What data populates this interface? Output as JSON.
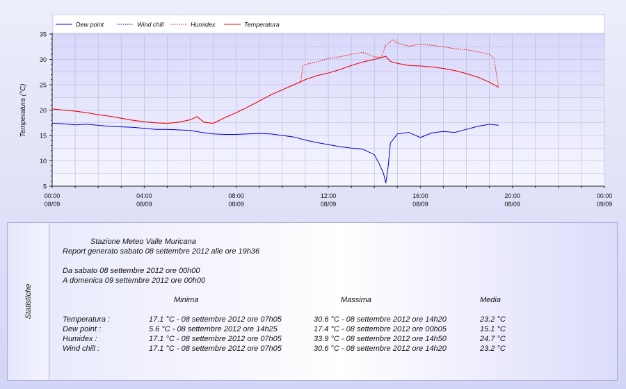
{
  "chart_data": {
    "type": "line",
    "ylabel": "Temperatura (°C)",
    "ylim": [
      5,
      35
    ],
    "yticks": [
      5,
      10,
      15,
      20,
      25,
      30,
      35
    ],
    "x_range_hours": [
      0,
      24
    ],
    "x_ticks": [
      {
        "time": "00:00",
        "date": "08/09"
      },
      {
        "time": "04:00",
        "date": "08/09"
      },
      {
        "time": "08:00",
        "date": "08/09"
      },
      {
        "time": "12:00",
        "date": "08/09"
      },
      {
        "time": "16:00",
        "date": "08/09"
      },
      {
        "time": "20:00",
        "date": "08/09"
      },
      {
        "time": "00:00",
        "date": "09/09"
      }
    ],
    "grid": true,
    "legend_position": "top",
    "series": [
      {
        "name": "Dew point",
        "color": "#0000cc",
        "style": "solid",
        "x": [
          0,
          0.5,
          1,
          1.5,
          2,
          2.5,
          3,
          3.5,
          4,
          4.5,
          5,
          5.5,
          6,
          6.5,
          7,
          7.5,
          8,
          8.5,
          9,
          9.5,
          10,
          10.5,
          11,
          11.5,
          12,
          12.5,
          13,
          13.5,
          14,
          14.2,
          14.4,
          14.5,
          14.6,
          14.7,
          15,
          15.5,
          16,
          16.5,
          17,
          17.5,
          18,
          18.5,
          19,
          19.4
        ],
        "y": [
          17.4,
          17.3,
          17.1,
          17.2,
          17.0,
          16.8,
          16.7,
          16.6,
          16.4,
          16.2,
          16.2,
          16.1,
          16.0,
          15.6,
          15.3,
          15.2,
          15.2,
          15.3,
          15.4,
          15.3,
          15.0,
          14.7,
          14.1,
          13.6,
          13.2,
          12.8,
          12.5,
          12.3,
          11.2,
          9.5,
          7.5,
          5.6,
          8.8,
          13.5,
          15.3,
          15.6,
          14.6,
          15.5,
          15.8,
          15.6,
          16.2,
          16.8,
          17.2,
          17.0
        ]
      },
      {
        "name": "Wind chill",
        "color": "#0000cc",
        "style": "dotted",
        "x": [
          0,
          0.5,
          1,
          1.5,
          2,
          2.5,
          3,
          3.5,
          4,
          4.5,
          5,
          5.5,
          6,
          6.3,
          6.6,
          7,
          7.5,
          8,
          8.5,
          9,
          9.5,
          10,
          10.5,
          11,
          11.5,
          12,
          12.5,
          13,
          13.5,
          14,
          14.5,
          14.7,
          15,
          15.5,
          16,
          16.5,
          17,
          17.5,
          18,
          18.5,
          19,
          19.4
        ],
        "y": [
          20.2,
          20.0,
          19.8,
          19.5,
          19.1,
          18.8,
          18.4,
          18.0,
          17.7,
          17.5,
          17.4,
          17.6,
          18.1,
          18.7,
          17.6,
          17.4,
          18.5,
          19.5,
          20.6,
          21.8,
          23.0,
          24.0,
          25.0,
          26.0,
          26.8,
          27.3,
          28.0,
          28.8,
          29.5,
          30.0,
          30.6,
          29.6,
          29.2,
          28.8,
          28.7,
          28.5,
          28.2,
          27.8,
          27.2,
          26.5,
          25.5,
          24.5
        ]
      },
      {
        "name": "Humidex",
        "color": "#ff0000",
        "style": "dotted",
        "x": [
          0,
          0.5,
          1,
          1.5,
          2,
          2.5,
          3,
          3.5,
          4,
          4.5,
          5,
          5.5,
          6,
          6.3,
          6.6,
          7,
          7.5,
          8,
          8.5,
          9,
          9.5,
          10,
          10.5,
          10.8,
          10.9,
          11,
          11.5,
          12,
          12.5,
          13,
          13.5,
          14,
          14.3,
          14.5,
          14.8,
          15,
          15.5,
          16,
          16.5,
          17,
          17.5,
          18,
          18.5,
          19,
          19.2,
          19.4
        ],
        "y": [
          20.2,
          20.0,
          19.8,
          19.5,
          19.1,
          18.8,
          18.4,
          18.0,
          17.7,
          17.5,
          17.4,
          17.6,
          18.1,
          18.7,
          17.6,
          17.4,
          18.5,
          19.5,
          20.6,
          21.8,
          23.0,
          24.0,
          25.0,
          25.5,
          28.8,
          29.0,
          29.5,
          30.2,
          30.5,
          31.0,
          31.4,
          30.5,
          30.4,
          32.8,
          33.9,
          33.2,
          32.6,
          33.0,
          32.8,
          32.5,
          32.1,
          31.9,
          31.5,
          31.0,
          30.2,
          24.5
        ]
      },
      {
        "name": "Temperatura",
        "color": "#ff0000",
        "style": "solid",
        "x": [
          0,
          0.5,
          1,
          1.5,
          2,
          2.5,
          3,
          3.5,
          4,
          4.5,
          5,
          5.5,
          6,
          6.3,
          6.6,
          7,
          7.5,
          8,
          8.5,
          9,
          9.5,
          10,
          10.5,
          11,
          11.5,
          12,
          12.5,
          13,
          13.5,
          14,
          14.5,
          14.7,
          15,
          15.5,
          16,
          16.5,
          17,
          17.5,
          18,
          18.5,
          19,
          19.4
        ],
        "y": [
          20.2,
          20.0,
          19.8,
          19.5,
          19.1,
          18.8,
          18.4,
          18.0,
          17.7,
          17.5,
          17.4,
          17.6,
          18.1,
          18.7,
          17.6,
          17.4,
          18.5,
          19.5,
          20.6,
          21.8,
          23.0,
          24.0,
          25.0,
          26.0,
          26.8,
          27.3,
          28.0,
          28.8,
          29.5,
          30.0,
          30.6,
          29.6,
          29.2,
          28.8,
          28.7,
          28.5,
          28.2,
          27.8,
          27.2,
          26.5,
          25.5,
          24.5
        ]
      }
    ]
  },
  "stats": {
    "side_label": "Statistiche",
    "station_name": "Stazione Meteo Valle Muricana",
    "report_line": "Report generato sabato 08 settembre 2012 alle ore 19h36",
    "from_line": "Da sabato 08 settembre 2012 ore 00h00",
    "to_line": "A domenica 09 settembre 2012 ore 00h00",
    "headers": {
      "min": "Minima",
      "max": "Massima",
      "avg": "Media"
    },
    "rows": [
      {
        "label": "Temperatura :",
        "min": "17.1 °C - 08 settembre 2012 ore 07h05",
        "max": "30.6 °C - 08 settembre 2012 ore 14h20",
        "avg": "23.2 °C"
      },
      {
        "label": "Dew point :",
        "min": "5.6 °C - 08 settembre 2012 ore 14h25",
        "max": "17.4 °C - 08 settembre 2012 ore 00h05",
        "avg": "15.1 °C"
      },
      {
        "label": "Humidex :",
        "min": "17.1 °C - 08 settembre 2012 ore 07h05",
        "max": "33.9 °C - 08 settembre 2012 ore 14h50",
        "avg": "24.7 °C"
      },
      {
        "label": "Wind chill :",
        "min": "17.1 °C - 08 settembre 2012 ore 07h05",
        "max": "30.6 °C - 08 settembre 2012 ore 14h20",
        "avg": "23.2 °C"
      }
    ]
  }
}
